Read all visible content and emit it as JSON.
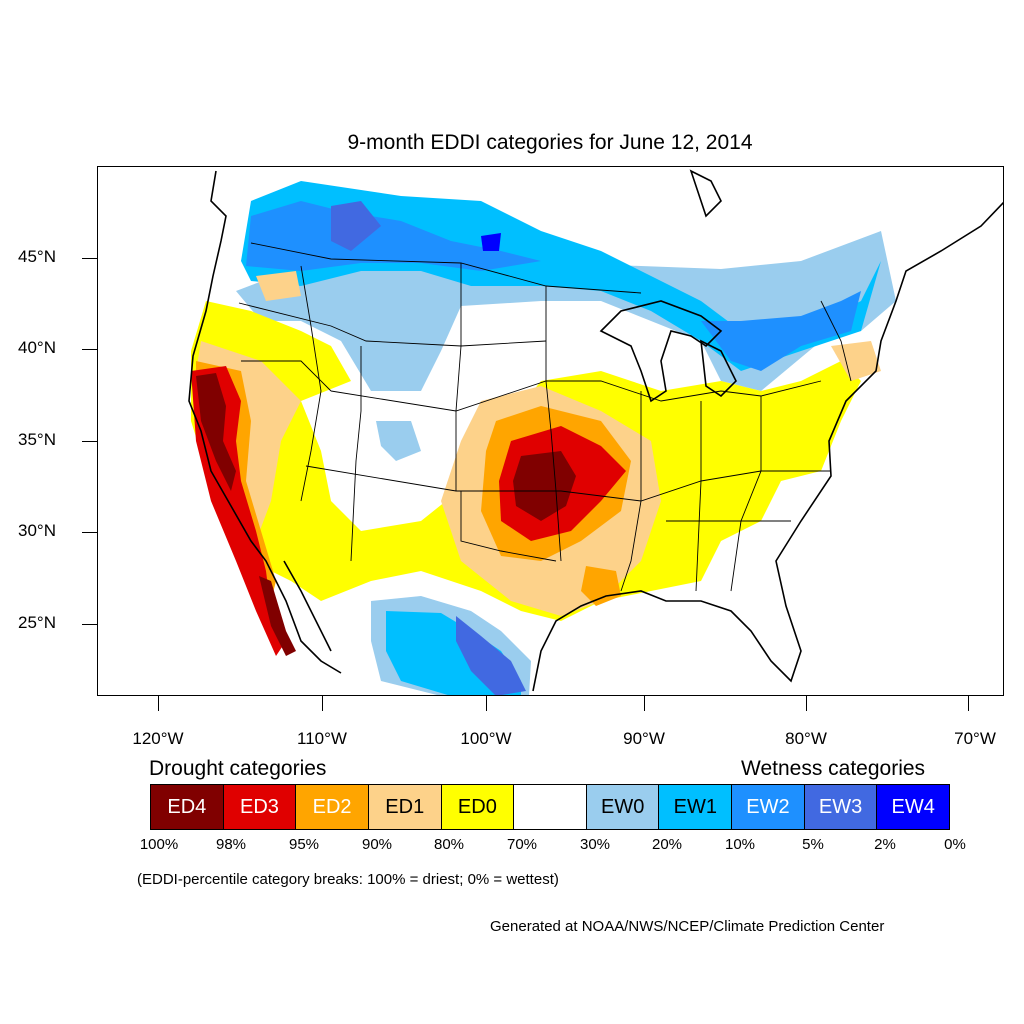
{
  "title": "9-month EDDI categories for June 12, 2014",
  "axes": {
    "lat_labels": [
      "45°N",
      "40°N",
      "35°N",
      "30°N",
      "25°N"
    ],
    "lon_labels": [
      "120°W",
      "110°W",
      "100°W",
      "90°W",
      "80°W",
      "70°W"
    ]
  },
  "legend": {
    "drought_heading": "Drought categories",
    "wetness_heading": "Wetness categories",
    "categories": [
      {
        "label": "ED4",
        "color": "#800000",
        "text_color": "#ffffff"
      },
      {
        "label": "ED3",
        "color": "#e00000",
        "text_color": "#ffffff"
      },
      {
        "label": "ED2",
        "color": "#ffa500",
        "text_color": "#ffffff"
      },
      {
        "label": "ED1",
        "color": "#fdd28a",
        "text_color": "#000000"
      },
      {
        "label": "ED0",
        "color": "#ffff00",
        "text_color": "#000000"
      },
      {
        "label": "",
        "color": "#ffffff",
        "text_color": "#000000"
      },
      {
        "label": "EW0",
        "color": "#9acdee",
        "text_color": "#000000"
      },
      {
        "label": "EW1",
        "color": "#00bfff",
        "text_color": "#000000"
      },
      {
        "label": "EW2",
        "color": "#1e90ff",
        "text_color": "#ffffff"
      },
      {
        "label": "EW3",
        "color": "#4169e1",
        "text_color": "#ffffff"
      },
      {
        "label": "EW4",
        "color": "#0000ff",
        "text_color": "#ffffff"
      }
    ],
    "breaks": [
      "100%",
      "98%",
      "95%",
      "90%",
      "80%",
      "70%",
      "30%",
      "20%",
      "10%",
      "5%",
      "2%",
      "0%"
    ]
  },
  "note": "(EDDI-percentile category breaks: 100% = driest; 0% = wettest)",
  "credit": "Generated at NOAA/NWS/NCEP/Climate Prediction Center"
}
